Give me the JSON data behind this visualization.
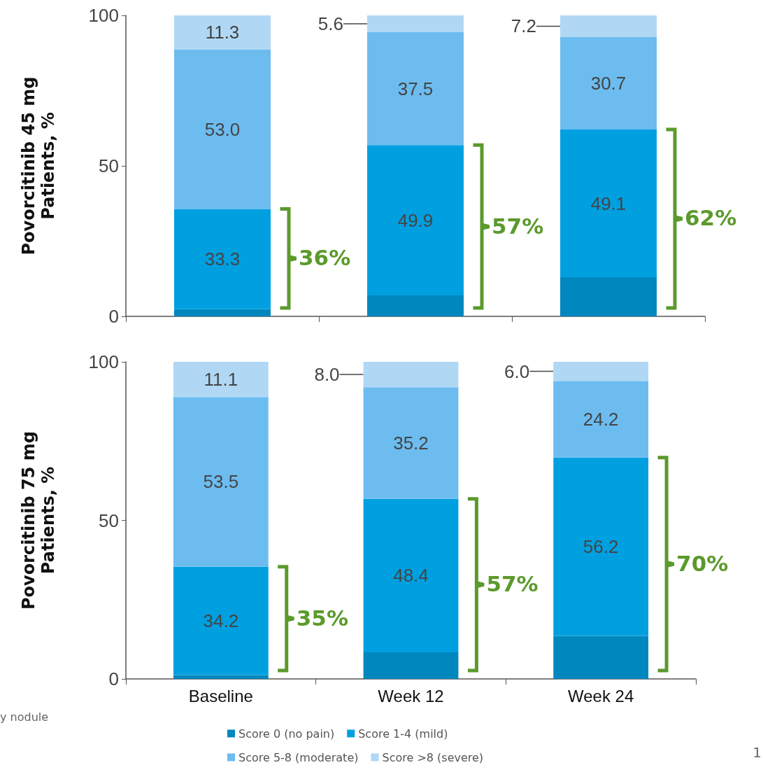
{
  "chart_data": [
    {
      "type": "bar",
      "stacked": true,
      "ylabel": "Povorcitinib 45 mg\nPatients, %",
      "categories": [
        null,
        null,
        null
      ],
      "ylim": [
        0,
        100
      ],
      "yticks": [
        0,
        50,
        100
      ],
      "grid": false,
      "legend": false,
      "tick_labels": "y",
      "series": [
        {
          "color": "#0087be",
          "values": [
            2.4,
            7.0,
            13.0
          ]
        },
        {
          "color": "#00a0e0",
          "values": [
            33.3,
            49.9,
            49.1
          ],
          "value_labels": [
            "33.3",
            "49.9",
            "49.1"
          ]
        },
        {
          "color": "#6cbcf0",
          "values": [
            53.0,
            37.5,
            30.7
          ],
          "value_labels": [
            "53.0",
            "37.5",
            "30.7"
          ]
        },
        {
          "color": "#b0d8f5",
          "values": [
            11.3,
            5.6,
            7.2
          ],
          "value_labels": [
            "11.3",
            "5.6",
            "7.2"
          ]
        }
      ],
      "annotations": [
        "36%",
        "57%",
        "62%"
      ]
    },
    {
      "type": "bar",
      "stacked": true,
      "ylabel": "Povorcitinib 75 mg\nPatients, %",
      "categories": [
        "Baseline",
        "Week 12",
        "Week 24"
      ],
      "ylim": [
        0,
        100
      ],
      "yticks": [
        0,
        50,
        100
      ],
      "grid": false,
      "legend": "bottom",
      "series": [
        {
          "name": "Score 0 (no pain)",
          "color": "#0087be",
          "values": [
            1.2,
            8.4,
            13.6
          ]
        },
        {
          "name": "Score 1-4 (mild)",
          "color": "#00a0e0",
          "values": [
            34.2,
            48.4,
            56.2
          ],
          "value_labels": [
            "34.2",
            "48.4",
            "56.2"
          ]
        },
        {
          "name": "Score 5-8 (moderate)",
          "color": "#6cbcf0",
          "values": [
            53.5,
            35.2,
            24.2
          ],
          "value_labels": [
            "53.5",
            "35.2",
            "24.2"
          ]
        },
        {
          "name": "Score >8 (severe)",
          "color": "#b0d8f5",
          "values": [
            11.1,
            8.0,
            6.0
          ],
          "value_labels": [
            "11.1",
            "8.0",
            "6.0"
          ]
        }
      ],
      "annotations": [
        "35%",
        "57%",
        "70%",
        "y nodule",
        "1"
      ]
    }
  ]
}
